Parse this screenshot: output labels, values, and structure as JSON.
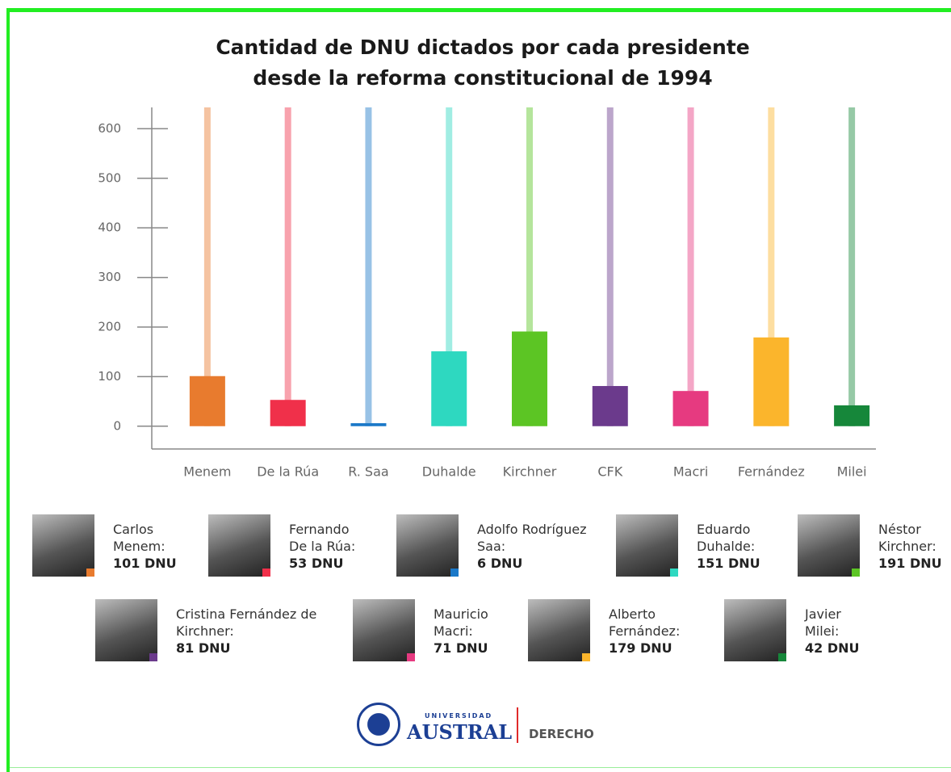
{
  "chart_data": {
    "type": "bar",
    "title": [
      "Cantidad de DNU dictados por cada presidente",
      "desde la reforma constitucional de 1994"
    ],
    "categories": [
      "Menem",
      "De la Rúa",
      "R. Saa",
      "Duhalde",
      "Kirchner",
      "CFK",
      "Macri",
      "Fernández",
      "Milei"
    ],
    "values": [
      101,
      53,
      6,
      151,
      191,
      81,
      71,
      179,
      42
    ],
    "value_labels": [
      "101 DNU",
      "53 DNU",
      "6 DNU",
      "151 DNU",
      "191 DNU",
      "81 DNU",
      "71 DNU",
      "179 DNU",
      "42 DNU"
    ],
    "names": [
      "Carlos Menem:",
      "Fernando De la Rúa:",
      "Adolfo Rodríguez Saa:",
      "Eduardo Duhalde:",
      "Néstor Kirchner:",
      "Cristina Fernández de Kirchner:",
      "Mauricio Macri:",
      "Alberto Fernández:",
      "Javier Milei:"
    ],
    "colors": [
      "#e87b2e",
      "#f0304a",
      "#1a78c8",
      "#2ed8c0",
      "#5cc524",
      "#6b3a8c",
      "#e63a80",
      "#fbb52c",
      "#16873a"
    ],
    "ylim": [
      -46,
      643
    ],
    "yticks": [
      0,
      100,
      200,
      300,
      400,
      500,
      600
    ]
  },
  "footer": {
    "university_small": "UNIVERSIDAD",
    "university": "AUSTRAL",
    "faculty": "DERECHO"
  }
}
